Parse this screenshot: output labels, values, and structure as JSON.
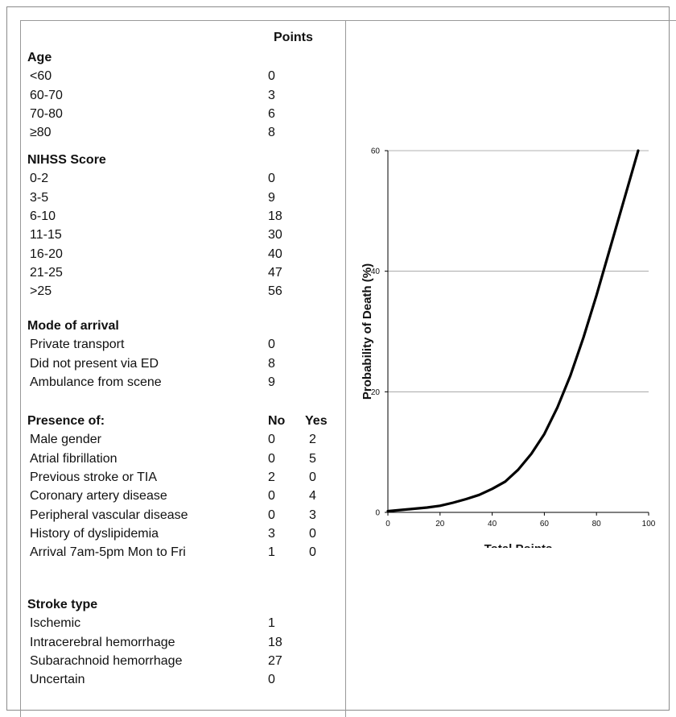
{
  "score_table": {
    "points_header": "Points",
    "no_header": "No",
    "yes_header": "Yes",
    "sections": [
      {
        "title": "Age",
        "rows": [
          {
            "label": "<60",
            "points": "0"
          },
          {
            "label": "60-70",
            "points": "3"
          },
          {
            "label": "70-80",
            "points": "6"
          },
          {
            "label": "≥80",
            "points": "8"
          }
        ]
      },
      {
        "title": "NIHSS Score",
        "rows": [
          {
            "label": "0-2",
            "points": "0"
          },
          {
            "label": "3-5",
            "points": "9"
          },
          {
            "label": "6-10",
            "points": "18"
          },
          {
            "label": "11-15",
            "points": "30"
          },
          {
            "label": "16-20",
            "points": "40"
          },
          {
            "label": "21-25",
            "points": "47"
          },
          {
            "label": ">25",
            "points": "56"
          }
        ]
      },
      {
        "title": "Mode of arrival",
        "rows": [
          {
            "label": "Private transport",
            "points": "0"
          },
          {
            "label": "Did not present via ED",
            "points": "8"
          },
          {
            "label": "Ambulance from scene",
            "points": "9"
          }
        ]
      },
      {
        "title": "Presence of:",
        "rows": [
          {
            "label": "Male gender",
            "no": "0",
            "yes": "2"
          },
          {
            "label": "Atrial fibrillation",
            "no": "0",
            "yes": "5"
          },
          {
            "label": "Previous stroke or TIA",
            "no": "2",
            "yes": "0"
          },
          {
            "label": "Coronary artery disease",
            "no": "0",
            "yes": "4"
          },
          {
            "label": "Peripheral vascular disease",
            "no": "0",
            "yes": "3"
          },
          {
            "label": "History of dyslipidemia",
            "no": "3",
            "yes": "0"
          },
          {
            "label": "Arrival 7am-5pm Mon to Fri",
            "no": "1",
            "yes": "0"
          }
        ]
      },
      {
        "title": "Stroke type",
        "rows": [
          {
            "label": "Ischemic",
            "points": "1"
          },
          {
            "label": "Intracerebral hemorrhage",
            "points": "18"
          },
          {
            "label": "Subarachnoid hemorrhage",
            "points": "27"
          },
          {
            "label": "Uncertain",
            "points": "0"
          }
        ]
      }
    ]
  },
  "chart_data": {
    "type": "line",
    "title": "",
    "xlabel": "Total Points",
    "ylabel": "Probability of Death (%)",
    "xlim": [
      0,
      100
    ],
    "ylim": [
      0,
      60
    ],
    "xticks": [
      0,
      20,
      40,
      60,
      80,
      100
    ],
    "yticks": [
      0,
      20,
      40,
      60
    ],
    "grid": "horizontal",
    "line_color": "#000000",
    "grid_color": "#999999",
    "series": [
      {
        "x": [
          0,
          5,
          10,
          15,
          20,
          25,
          30,
          35,
          40,
          45,
          50,
          55,
          60,
          65,
          70,
          75,
          80,
          85,
          90,
          95,
          96
        ],
        "y": [
          0.2,
          0.4,
          0.6,
          0.8,
          1.1,
          1.6,
          2.2,
          2.9,
          3.9,
          5.1,
          7.1,
          9.7,
          13.0,
          17.4,
          22.7,
          29.0,
          36.0,
          43.5,
          51.0,
          58.5,
          60.0
        ]
      }
    ]
  }
}
